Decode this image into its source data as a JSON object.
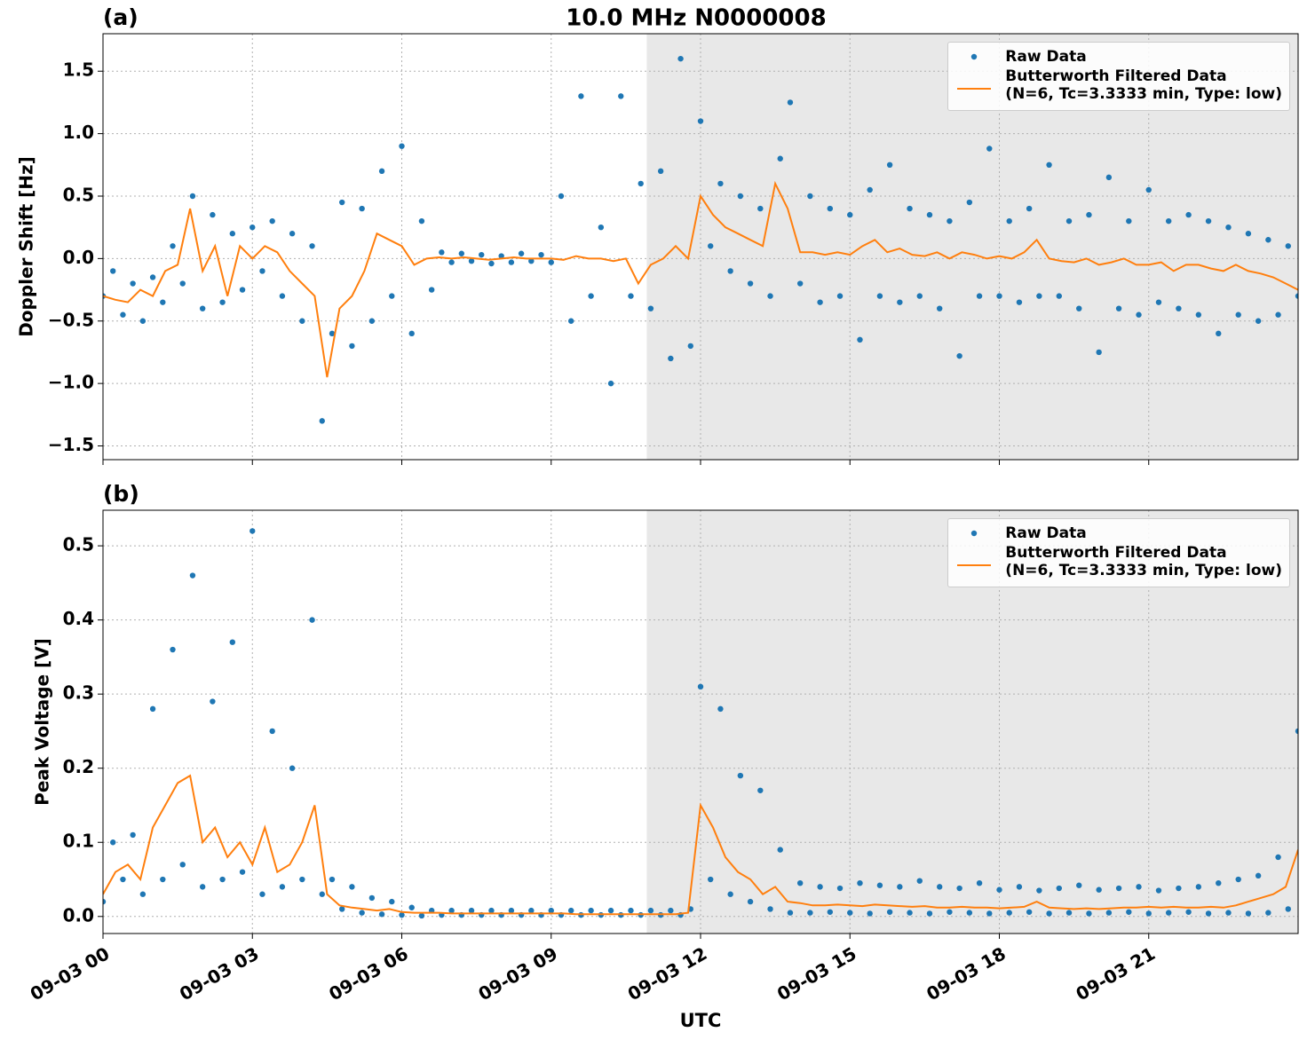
{
  "chart_data": [
    {
      "type": "scatter-line",
      "title": "10.0 MHz N0000008",
      "panel_label": "(a)",
      "ylabel": "Doppler Shift [Hz]",
      "xlim": [
        0,
        24
      ],
      "xticks": [
        0,
        3,
        6,
        9,
        12,
        15,
        18,
        21
      ],
      "ylim": [
        -1.61,
        1.8
      ],
      "yticks": [
        {
          "value": -1.5,
          "label": "−1.5"
        },
        {
          "value": -1.0,
          "label": "−1.0"
        },
        {
          "value": -0.5,
          "label": "−0.5"
        },
        {
          "value": 0,
          "label": "0.0"
        },
        {
          "value": 0.5,
          "label": "0.5"
        },
        {
          "value": 1.0,
          "label": "1.0"
        },
        {
          "value": 1.5,
          "label": "1.5"
        }
      ],
      "grid": true,
      "legend": "upper right",
      "shaded_xrange": [
        10.92,
        24
      ],
      "series": [
        {
          "name": "Raw Data",
          "color": "#1f77b4",
          "kind": "scatter",
          "x": [
            0,
            0.2,
            0.4,
            0.6,
            0.8,
            1,
            1.2,
            1.4,
            1.6,
            1.8,
            2,
            2.2,
            2.4,
            2.6,
            2.8,
            3,
            3.2,
            3.4,
            3.6,
            3.8,
            4,
            4.2,
            4.4,
            4.6,
            4.8,
            5,
            5.2,
            5.4,
            5.6,
            5.8,
            6,
            6.2,
            6.4,
            6.6,
            6.8,
            7,
            7.2,
            7.4,
            7.6,
            7.8,
            8,
            8.2,
            8.4,
            8.6,
            8.8,
            9,
            9.2,
            9.4,
            9.6,
            9.8,
            10,
            10.2,
            10.4,
            10.6,
            10.8,
            11,
            11.2,
            11.4,
            11.6,
            11.8,
            12,
            12.2,
            12.4,
            12.6,
            12.8,
            13,
            13.2,
            13.4,
            13.6,
            13.8,
            14,
            14.2,
            14.4,
            14.6,
            14.8,
            15,
            15.2,
            15.4,
            15.6,
            15.8,
            16,
            16.2,
            16.4,
            16.6,
            16.8,
            17,
            17.2,
            17.4,
            17.6,
            17.8,
            18,
            18.2,
            18.4,
            18.6,
            18.8,
            19,
            19.2,
            19.4,
            19.6,
            19.8,
            20,
            20.2,
            20.4,
            20.6,
            20.8,
            21,
            21.2,
            21.4,
            21.6,
            21.8,
            22,
            22.2,
            22.4,
            22.6,
            22.8,
            23,
            23.2,
            23.4,
            23.6,
            23.8,
            24
          ],
          "values": [
            -0.3,
            -0.1,
            -0.45,
            -0.2,
            -0.5,
            -0.15,
            -0.35,
            0.1,
            -0.2,
            0.5,
            -0.4,
            0.35,
            -0.35,
            0.2,
            -0.25,
            0.25,
            -0.1,
            0.3,
            -0.3,
            0.2,
            -0.5,
            0.1,
            -1.3,
            -0.6,
            0.45,
            -0.7,
            0.4,
            -0.5,
            0.7,
            -0.3,
            0.9,
            -0.6,
            0.3,
            -0.25,
            0.05,
            -0.03,
            0.04,
            -0.02,
            0.03,
            -0.04,
            0.02,
            -0.03,
            0.04,
            -0.02,
            0.03,
            -0.03,
            0.5,
            -0.5,
            1.3,
            -0.3,
            0.25,
            -1.0,
            1.3,
            -0.3,
            0.6,
            -0.4,
            0.7,
            -0.8,
            1.6,
            -0.7,
            1.1,
            0.1,
            0.6,
            -0.1,
            0.5,
            -0.2,
            0.4,
            -0.3,
            0.8,
            1.25,
            -0.2,
            0.5,
            -0.35,
            0.4,
            -0.3,
            0.35,
            -0.65,
            0.55,
            -0.3,
            0.75,
            -0.35,
            0.4,
            -0.3,
            0.35,
            -0.4,
            0.3,
            -0.78,
            0.45,
            -0.3,
            0.88,
            -0.3,
            0.3,
            -0.35,
            0.4,
            -0.3,
            0.75,
            -0.3,
            0.3,
            -0.4,
            0.35,
            -0.75,
            0.65,
            -0.4,
            0.3,
            -0.45,
            0.55,
            -0.35,
            0.3,
            -0.4,
            0.35,
            -0.45,
            0.3,
            -0.6,
            0.25,
            -0.45,
            0.2,
            -0.5,
            0.15,
            -0.45,
            0.1,
            -0.3
          ]
        },
        {
          "name": "Butterworth Filtered Data\n(N=6, Tc=3.3333 min, Type: low)",
          "color": "#ff7f0e",
          "kind": "line",
          "x": [
            0,
            0.25,
            0.5,
            0.75,
            1,
            1.25,
            1.5,
            1.75,
            2,
            2.25,
            2.5,
            2.75,
            3,
            3.25,
            3.5,
            3.75,
            4,
            4.25,
            4.5,
            4.75,
            5,
            5.25,
            5.5,
            5.75,
            6,
            6.25,
            6.5,
            6.75,
            7,
            7.25,
            7.5,
            7.75,
            8,
            8.25,
            8.5,
            8.75,
            9,
            9.25,
            9.5,
            9.75,
            10,
            10.25,
            10.5,
            10.75,
            11,
            11.25,
            11.5,
            11.75,
            12,
            12.25,
            12.5,
            12.75,
            13,
            13.25,
            13.5,
            13.75,
            14,
            14.25,
            14.5,
            14.75,
            15,
            15.25,
            15.5,
            15.75,
            16,
            16.25,
            16.5,
            16.75,
            17,
            17.25,
            17.5,
            17.75,
            18,
            18.25,
            18.5,
            18.75,
            19,
            19.25,
            19.5,
            19.75,
            20,
            20.25,
            20.5,
            20.75,
            21,
            21.25,
            21.5,
            21.75,
            22,
            22.25,
            22.5,
            22.75,
            23,
            23.25,
            23.5,
            23.75,
            24
          ],
          "values": [
            -0.3,
            -0.33,
            -0.35,
            -0.25,
            -0.3,
            -0.1,
            -0.05,
            0.4,
            -0.1,
            0.1,
            -0.3,
            0.1,
            0.0,
            0.1,
            0.05,
            -0.1,
            -0.2,
            -0.3,
            -0.95,
            -0.4,
            -0.3,
            -0.1,
            0.2,
            0.15,
            0.1,
            -0.05,
            0.0,
            0.01,
            0.0,
            0.01,
            0.0,
            -0.01,
            0.0,
            0.01,
            0.0,
            0.0,
            0.0,
            -0.01,
            0.02,
            0.0,
            0.0,
            -0.02,
            0.0,
            -0.2,
            -0.05,
            0.0,
            0.1,
            0.0,
            0.5,
            0.35,
            0.25,
            0.2,
            0.15,
            0.1,
            0.6,
            0.4,
            0.05,
            0.05,
            0.03,
            0.05,
            0.03,
            0.1,
            0.15,
            0.05,
            0.08,
            0.03,
            0.02,
            0.05,
            0.0,
            0.05,
            0.03,
            0.0,
            0.02,
            0.0,
            0.05,
            0.15,
            0.0,
            -0.02,
            -0.03,
            0.0,
            -0.05,
            -0.03,
            0.0,
            -0.05,
            -0.05,
            -0.03,
            -0.1,
            -0.05,
            -0.05,
            -0.08,
            -0.1,
            -0.05,
            -0.1,
            -0.12,
            -0.15,
            -0.2,
            -0.25
          ]
        }
      ]
    },
    {
      "type": "scatter-line",
      "panel_label": "(b)",
      "ylabel": "Peak Voltage [V]",
      "xlabel": "UTC",
      "xlim": [
        0,
        24
      ],
      "xticks": [
        {
          "value": 0,
          "label": "09-03 00"
        },
        {
          "value": 3,
          "label": "09-03 03"
        },
        {
          "value": 6,
          "label": "09-03 06"
        },
        {
          "value": 9,
          "label": "09-03 09"
        },
        {
          "value": 12,
          "label": "09-03 12"
        },
        {
          "value": 15,
          "label": "09-03 15"
        },
        {
          "value": 18,
          "label": "09-03 18"
        },
        {
          "value": 21,
          "label": "09-03 21"
        }
      ],
      "ylim": [
        -0.023,
        0.548
      ],
      "yticks": [
        {
          "value": 0,
          "label": "0.0"
        },
        0.1,
        0.2,
        0.3,
        0.4,
        0.5
      ],
      "grid": true,
      "legend": "upper right",
      "shaded_xrange": [
        10.92,
        24
      ],
      "series": [
        {
          "name": "Raw Data",
          "color": "#1f77b4",
          "kind": "scatter",
          "x": [
            0,
            0.2,
            0.4,
            0.6,
            0.8,
            1,
            1.2,
            1.4,
            1.6,
            1.8,
            2,
            2.2,
            2.4,
            2.6,
            2.8,
            3,
            3.2,
            3.4,
            3.6,
            3.8,
            4,
            4.2,
            4.4,
            4.6,
            4.8,
            5,
            5.2,
            5.4,
            5.6,
            5.8,
            6,
            6.2,
            6.4,
            6.6,
            6.8,
            7,
            7.2,
            7.4,
            7.6,
            7.8,
            8,
            8.2,
            8.4,
            8.6,
            8.8,
            9,
            9.2,
            9.4,
            9.6,
            9.8,
            10,
            10.2,
            10.4,
            10.6,
            10.8,
            11,
            11.2,
            11.4,
            11.6,
            11.8,
            12,
            12.2,
            12.4,
            12.6,
            12.8,
            13,
            13.2,
            13.4,
            13.6,
            13.8,
            14,
            14.2,
            14.4,
            14.6,
            14.8,
            15,
            15.2,
            15.4,
            15.6,
            15.8,
            16,
            16.2,
            16.4,
            16.6,
            16.8,
            17,
            17.2,
            17.4,
            17.6,
            17.8,
            18,
            18.2,
            18.4,
            18.6,
            18.8,
            19,
            19.2,
            19.4,
            19.6,
            19.8,
            20,
            20.2,
            20.4,
            20.6,
            20.8,
            21,
            21.2,
            21.4,
            21.6,
            21.8,
            22,
            22.2,
            22.4,
            22.6,
            22.8,
            23,
            23.2,
            23.4,
            23.6,
            23.8,
            24
          ],
          "values": [
            0.02,
            0.1,
            0.05,
            0.11,
            0.03,
            0.28,
            0.05,
            0.36,
            0.07,
            0.46,
            0.04,
            0.29,
            0.05,
            0.37,
            0.06,
            0.52,
            0.03,
            0.25,
            0.04,
            0.2,
            0.05,
            0.4,
            0.03,
            0.05,
            0.01,
            0.04,
            0.005,
            0.025,
            0.003,
            0.02,
            0.002,
            0.012,
            0.001,
            0.008,
            0.002,
            0.008,
            0.002,
            0.008,
            0.002,
            0.008,
            0.002,
            0.008,
            0.002,
            0.008,
            0.002,
            0.008,
            0.002,
            0.008,
            0.002,
            0.008,
            0.002,
            0.008,
            0.002,
            0.008,
            0.002,
            0.008,
            0.002,
            0.008,
            0.002,
            0.01,
            0.31,
            0.05,
            0.28,
            0.03,
            0.19,
            0.02,
            0.17,
            0.01,
            0.09,
            0.005,
            0.045,
            0.005,
            0.04,
            0.006,
            0.038,
            0.005,
            0.045,
            0.004,
            0.042,
            0.006,
            0.04,
            0.005,
            0.048,
            0.004,
            0.04,
            0.006,
            0.038,
            0.005,
            0.045,
            0.004,
            0.036,
            0.005,
            0.04,
            0.006,
            0.035,
            0.004,
            0.038,
            0.005,
            0.042,
            0.004,
            0.036,
            0.005,
            0.038,
            0.006,
            0.04,
            0.004,
            0.035,
            0.005,
            0.038,
            0.006,
            0.04,
            0.004,
            0.045,
            0.005,
            0.05,
            0.004,
            0.055,
            0.005,
            0.08,
            0.01,
            0.25
          ]
        },
        {
          "name": "Butterworth Filtered Data\n(N=6, Tc=3.3333 min, Type: low)",
          "color": "#ff7f0e",
          "kind": "line",
          "x": [
            0,
            0.25,
            0.5,
            0.75,
            1,
            1.25,
            1.5,
            1.75,
            2,
            2.25,
            2.5,
            2.75,
            3,
            3.25,
            3.5,
            3.75,
            4,
            4.25,
            4.5,
            4.75,
            5,
            5.25,
            5.5,
            5.75,
            6,
            6.25,
            6.5,
            6.75,
            7,
            7.25,
            7.5,
            7.75,
            8,
            8.25,
            8.5,
            8.75,
            9,
            9.25,
            9.5,
            9.75,
            10,
            10.25,
            10.5,
            10.75,
            11,
            11.25,
            11.5,
            11.75,
            12,
            12.25,
            12.5,
            12.75,
            13,
            13.25,
            13.5,
            13.75,
            14,
            14.25,
            14.5,
            14.75,
            15,
            15.25,
            15.5,
            15.75,
            16,
            16.25,
            16.5,
            16.75,
            17,
            17.25,
            17.5,
            17.75,
            18,
            18.25,
            18.5,
            18.75,
            19,
            19.25,
            19.5,
            19.75,
            20,
            20.25,
            20.5,
            20.75,
            21,
            21.25,
            21.5,
            21.75,
            22,
            22.25,
            22.5,
            22.75,
            23,
            23.25,
            23.5,
            23.75,
            24
          ],
          "values": [
            0.03,
            0.06,
            0.07,
            0.05,
            0.12,
            0.15,
            0.18,
            0.19,
            0.1,
            0.12,
            0.08,
            0.1,
            0.07,
            0.12,
            0.06,
            0.07,
            0.1,
            0.15,
            0.03,
            0.015,
            0.012,
            0.01,
            0.008,
            0.01,
            0.006,
            0.005,
            0.005,
            0.005,
            0.004,
            0.004,
            0.004,
            0.004,
            0.004,
            0.004,
            0.004,
            0.004,
            0.004,
            0.004,
            0.003,
            0.003,
            0.003,
            0.003,
            0.003,
            0.003,
            0.003,
            0.003,
            0.003,
            0.005,
            0.15,
            0.12,
            0.08,
            0.06,
            0.05,
            0.03,
            0.04,
            0.02,
            0.018,
            0.015,
            0.015,
            0.016,
            0.015,
            0.014,
            0.016,
            0.015,
            0.014,
            0.013,
            0.014,
            0.012,
            0.012,
            0.013,
            0.012,
            0.012,
            0.011,
            0.012,
            0.013,
            0.02,
            0.012,
            0.011,
            0.01,
            0.011,
            0.01,
            0.011,
            0.012,
            0.012,
            0.013,
            0.012,
            0.013,
            0.012,
            0.012,
            0.013,
            0.012,
            0.015,
            0.02,
            0.025,
            0.03,
            0.04,
            0.09
          ]
        }
      ]
    }
  ]
}
